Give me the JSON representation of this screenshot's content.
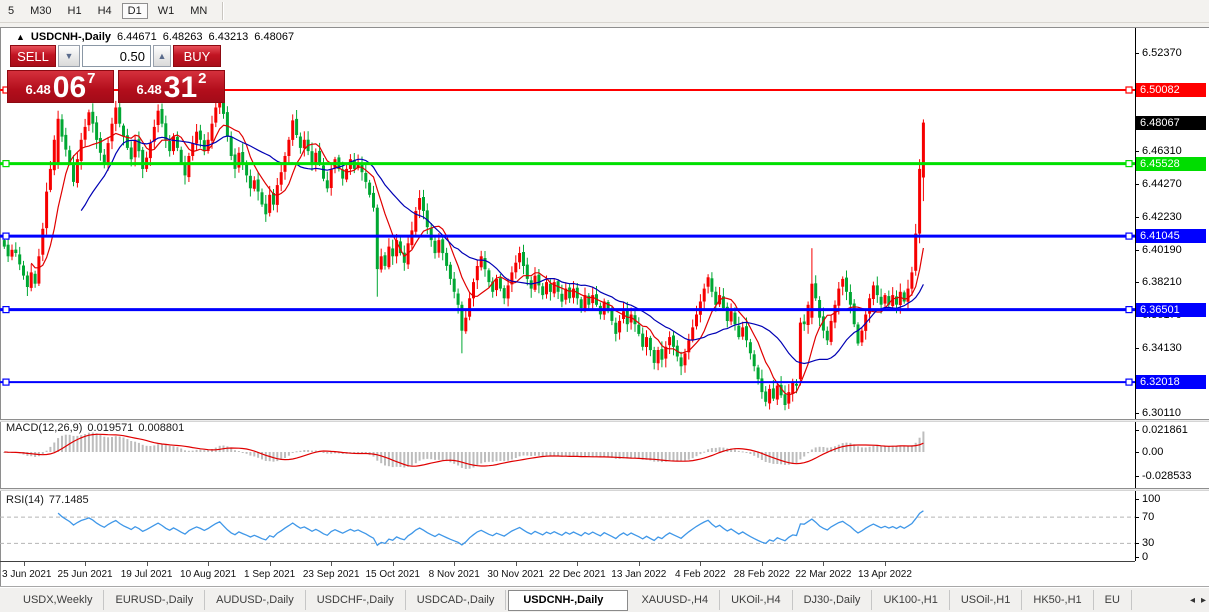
{
  "toolbar": {
    "timeframes": [
      {
        "label": "5",
        "active": false
      },
      {
        "label": "M30",
        "active": false
      },
      {
        "label": "H1",
        "active": false
      },
      {
        "label": "H4",
        "active": false
      },
      {
        "label": "D1",
        "active": true
      },
      {
        "label": "W1",
        "active": false
      },
      {
        "label": "MN",
        "active": false
      }
    ]
  },
  "chart": {
    "title": {
      "symbol": "USDCNH-,Daily",
      "open": "6.44671",
      "high": "6.48263",
      "low": "6.43213",
      "close": "6.48067"
    },
    "trade_panel": {
      "sell_label": "SELL",
      "buy_label": "BUY",
      "volume": "0.50",
      "sell_price": {
        "prefix": "6.48",
        "big": "06",
        "sup": "7"
      },
      "buy_price": {
        "prefix": "6.48",
        "big": "31",
        "sup": "2"
      }
    },
    "axis_ticks": [
      "6.52370",
      "6.46310",
      "6.44270",
      "6.42230",
      "6.40190",
      "6.38210",
      "6.36170",
      "6.34130",
      "6.30110"
    ],
    "price_labels": [
      {
        "label": "6.50082",
        "value": 6.50082,
        "color": "#ff0000"
      },
      {
        "label": "6.48067",
        "value": 6.48067,
        "color": "#000000"
      },
      {
        "label": "6.45528",
        "value": 6.45528,
        "color": "#00dd00"
      },
      {
        "label": "6.41045",
        "value": 6.41045,
        "color": "#0000ff"
      },
      {
        "label": "6.36501",
        "value": 6.36501,
        "color": "#0000ff"
      },
      {
        "label": "6.32018",
        "value": 6.32018,
        "color": "#0000ff"
      }
    ],
    "x_labels": [
      {
        "label": "3 Jun 2021",
        "day": 5
      },
      {
        "label": "25 Jun 2021",
        "day": 21
      },
      {
        "label": "19 Jul 2021",
        "day": 37
      },
      {
        "label": "10 Aug 2021",
        "day": 53
      },
      {
        "label": "1 Sep 2021",
        "day": 69
      },
      {
        "label": "23 Sep 2021",
        "day": 85
      },
      {
        "label": "15 Oct 2021",
        "day": 101
      },
      {
        "label": "8 Nov 2021",
        "day": 117
      },
      {
        "label": "30 Nov 2021",
        "day": 133
      },
      {
        "label": "22 Dec 2021",
        "day": 149
      },
      {
        "label": "13 Jan 2022",
        "day": 165
      },
      {
        "label": "4 Feb 2022",
        "day": 181
      },
      {
        "label": "28 Feb 2022",
        "day": 197
      },
      {
        "label": "22 Mar 2022",
        "day": 213
      },
      {
        "label": "13 Apr 2022",
        "day": 229
      }
    ]
  },
  "macd_panel": {
    "label": "MACD(12,26,9)",
    "value_main": "0.019571",
    "value_signal": "0.008801",
    "axis": [
      "0.021861",
      "0.00",
      "-0.028533"
    ]
  },
  "rsi_panel": {
    "label": "RSI(14)",
    "value": "77.1485",
    "axis": [
      "100",
      "70",
      "30",
      "0"
    ],
    "levels": [
      70,
      30
    ]
  },
  "tabs": {
    "items": [
      {
        "label": "USDX,Weekly",
        "active": false
      },
      {
        "label": "EURUSD-,Daily",
        "active": false
      },
      {
        "label": "AUDUSD-,Daily",
        "active": false
      },
      {
        "label": "USDCHF-,Daily",
        "active": false
      },
      {
        "label": "USDCAD-,Daily",
        "active": false
      },
      {
        "label": "USDCNH-,Daily",
        "active": true
      },
      {
        "label": "XAUUSD-,H4",
        "active": false
      },
      {
        "label": "UKOil-,H4",
        "active": false
      },
      {
        "label": "DJ30-,Daily",
        "active": false
      },
      {
        "label": "UK100-,H1",
        "active": false
      },
      {
        "label": "USOil-,H1",
        "active": false
      },
      {
        "label": "HK50-,H1",
        "active": false
      },
      {
        "label": "EU",
        "active": false
      }
    ],
    "scroll_left": "◂",
    "scroll_right": "▸"
  },
  "chart_data": {
    "type": "candlestick",
    "symbol": "USDCNH-",
    "timeframe": "Daily",
    "last_ohlc": {
      "open": 6.44671,
      "high": 6.48263,
      "low": 6.43213,
      "close": 6.48067
    },
    "price_axis": {
      "top": 6.5237,
      "bottom": 6.3011
    },
    "horizontal_levels": [
      {
        "value": 6.50082,
        "color": "#ff0000",
        "thickness": 2
      },
      {
        "value": 6.45528,
        "color": "#00e000",
        "thickness": 3
      },
      {
        "value": 6.41045,
        "color": "#0000ff",
        "thickness": 3
      },
      {
        "value": 6.36501,
        "color": "#0000ff",
        "thickness": 3
      },
      {
        "value": 6.32018,
        "color": "#0000ff",
        "thickness": 2
      }
    ],
    "bull_color": "#f60000",
    "bear_color": "#00a733",
    "ma_fast": {
      "period": 8,
      "color": "#e00000"
    },
    "ma_slow": {
      "period": 21,
      "color": "#0000b4"
    },
    "macd": {
      "params": [
        12,
        26,
        9
      ],
      "main": 0.019571,
      "signal": 0.008801,
      "axis_max": 0.021861,
      "axis_min": -0.028533
    },
    "rsi": {
      "period": 14,
      "value": 77.1485
    },
    "closes": [
      6.404,
      6.398,
      6.402,
      6.4,
      6.393,
      6.386,
      6.379,
      6.388,
      6.381,
      6.398,
      6.415,
      6.438,
      6.452,
      6.47,
      6.483,
      6.472,
      6.464,
      6.456,
      6.444,
      6.458,
      6.47,
      6.478,
      6.487,
      6.48,
      6.47,
      6.462,
      6.455,
      6.468,
      6.48,
      6.49,
      6.48,
      6.472,
      6.465,
      6.458,
      6.47,
      6.463,
      6.452,
      6.459,
      6.468,
      6.478,
      6.488,
      6.48,
      6.47,
      6.463,
      6.472,
      6.465,
      6.456,
      6.448,
      6.46,
      6.468,
      6.475,
      6.47,
      6.463,
      6.47,
      6.48,
      6.49,
      6.498,
      6.486,
      6.472,
      6.46,
      6.452,
      6.462,
      6.455,
      6.448,
      6.44,
      6.445,
      6.438,
      6.43,
      6.424,
      6.436,
      6.43,
      6.442,
      6.45,
      6.46,
      6.47,
      6.482,
      6.473,
      6.465,
      6.47,
      6.463,
      6.455,
      6.462,
      6.455,
      6.446,
      6.44,
      6.452,
      6.458,
      6.452,
      6.446,
      6.452,
      6.458,
      6.452,
      6.456,
      6.45,
      6.444,
      6.436,
      6.428,
      6.39,
      6.398,
      6.392,
      6.404,
      6.398,
      6.408,
      6.4,
      6.394,
      6.406,
      6.414,
      6.426,
      6.434,
      6.426,
      6.416,
      6.408,
      6.4,
      6.408,
      6.4,
      6.392,
      6.384,
      6.376,
      6.368,
      6.352,
      6.36,
      6.372,
      6.382,
      6.392,
      6.398,
      6.39,
      6.382,
      6.376,
      6.384,
      6.378,
      6.372,
      6.38,
      6.388,
      6.394,
      6.4,
      6.392,
      6.384,
      6.378,
      6.386,
      6.38,
      6.374,
      6.382,
      6.376,
      6.382,
      6.376,
      6.37,
      6.378,
      6.372,
      6.378,
      6.372,
      6.366,
      6.374,
      6.368,
      6.374,
      6.368,
      6.362,
      6.37,
      6.364,
      6.358,
      6.35,
      6.358,
      6.364,
      6.356,
      6.362,
      6.356,
      6.35,
      6.342,
      6.348,
      6.34,
      6.332,
      6.34,
      6.334,
      6.342,
      6.348,
      6.342,
      6.336,
      6.33,
      6.338,
      6.346,
      6.354,
      6.362,
      6.37,
      6.378,
      6.385,
      6.376,
      6.368,
      6.374,
      6.366,
      6.358,
      6.364,
      6.356,
      6.348,
      6.354,
      6.346,
      6.338,
      6.33,
      6.322,
      6.314,
      6.308,
      6.316,
      6.31,
      6.318,
      6.312,
      6.306,
      6.314,
      6.32,
      6.318,
      6.357,
      6.356,
      6.368,
      6.381,
      6.372,
      6.36,
      6.352,
      6.346,
      6.358,
      6.368,
      6.378,
      6.384,
      6.376,
      6.368,
      6.356,
      6.344,
      6.352,
      6.362,
      6.372,
      6.38,
      6.374,
      6.368,
      6.374,
      6.368,
      6.374,
      6.368,
      6.376,
      6.37,
      6.378,
      6.388,
      6.412,
      6.452,
      6.48067
    ],
    "overrides": {
      "14": [
        6.455,
        6.488,
        6.452,
        6.483
      ],
      "56": [
        6.49,
        6.505,
        6.486,
        6.498
      ],
      "97": [
        6.428,
        6.43,
        6.373,
        6.39
      ],
      "119": [
        6.368,
        6.37,
        6.338,
        6.352
      ],
      "169": [
        6.34,
        6.342,
        6.328,
        6.332
      ],
      "207": [
        6.322,
        6.36,
        6.318,
        6.357
      ],
      "210": [
        6.36,
        6.403,
        6.356,
        6.381
      ],
      "237": [
        6.389,
        6.418,
        6.386,
        6.412
      ],
      "238": [
        6.412,
        6.458,
        6.406,
        6.452
      ],
      "239": [
        6.44671,
        6.48263,
        6.43213,
        6.48067
      ]
    }
  }
}
